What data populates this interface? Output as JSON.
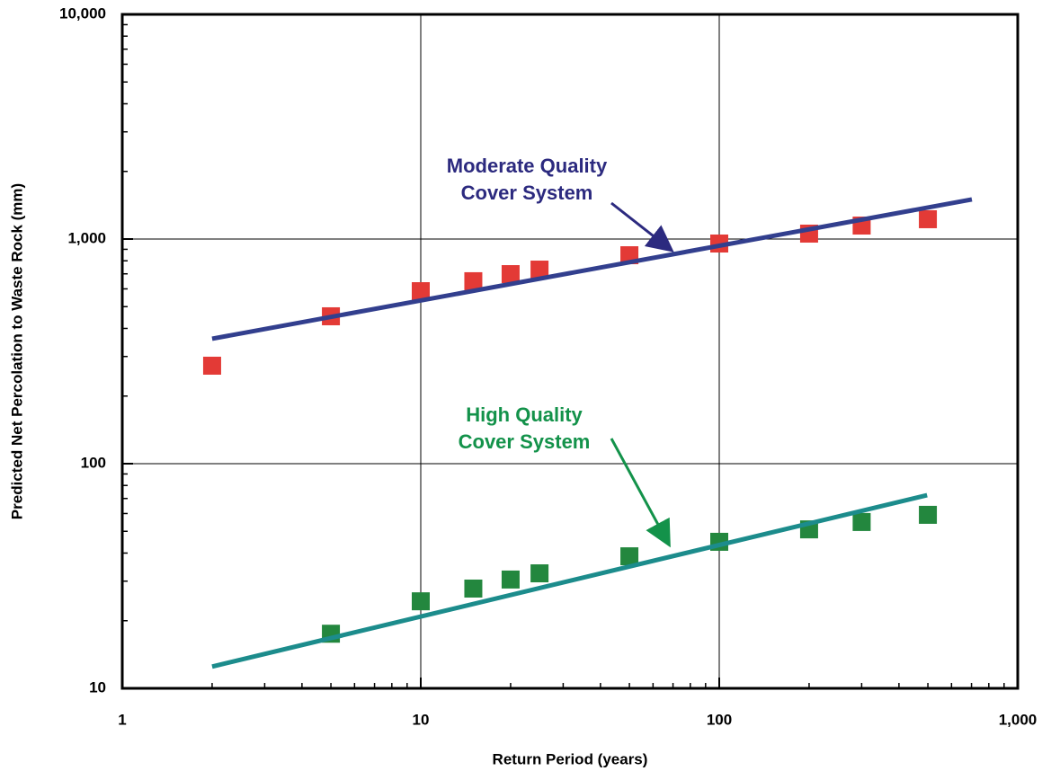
{
  "chart_data": {
    "type": "scatter",
    "xlabel": "Return Period (years)",
    "ylabel": "Predicted Net Percolation to Waste Rock (mm)",
    "xscale": "log",
    "yscale": "log",
    "xlim": [
      1,
      1000
    ],
    "ylim": [
      10,
      10000
    ],
    "xticks": [
      1,
      10,
      100,
      {
        "value": 1000,
        "label": "1,000"
      }
    ],
    "yticks": [
      10,
      100,
      {
        "value": 1000,
        "label": "1,000"
      },
      {
        "value": 10000,
        "label": "10,000"
      }
    ],
    "grid": true,
    "series": [
      {
        "mode": "markers",
        "color": "#e33a36",
        "x": [
          2,
          5,
          10,
          15,
          20,
          25,
          50,
          100,
          200,
          300,
          500
        ],
        "values": [
          273,
          453,
          586,
          649,
          698,
          731,
          847,
          955,
          1057,
          1148,
          1225
        ]
      },
      {
        "mode": "line",
        "color": "#323f8e",
        "x": [
          2,
          702
        ],
        "values": [
          360,
          1500
        ]
      },
      {
        "mode": "markers",
        "color": "#23873e",
        "x": [
          5,
          10,
          15,
          20,
          25,
          50,
          100,
          200,
          300,
          500
        ],
        "values": [
          17.5,
          24.4,
          27.8,
          30.5,
          32.5,
          38.7,
          44.9,
          51,
          55,
          59.2
        ]
      },
      {
        "mode": "line",
        "color": "#1c8c8c",
        "x": [
          2,
          497
        ],
        "values": [
          12.5,
          72.4
        ]
      }
    ],
    "annotations": [
      {
        "lines": [
          "Moderate Quality",
          "Cover System"
        ],
        "color": "#2c2a7f"
      },
      {
        "lines": [
          "High Quality",
          "Cover System"
        ],
        "color": "#13924a"
      }
    ]
  }
}
